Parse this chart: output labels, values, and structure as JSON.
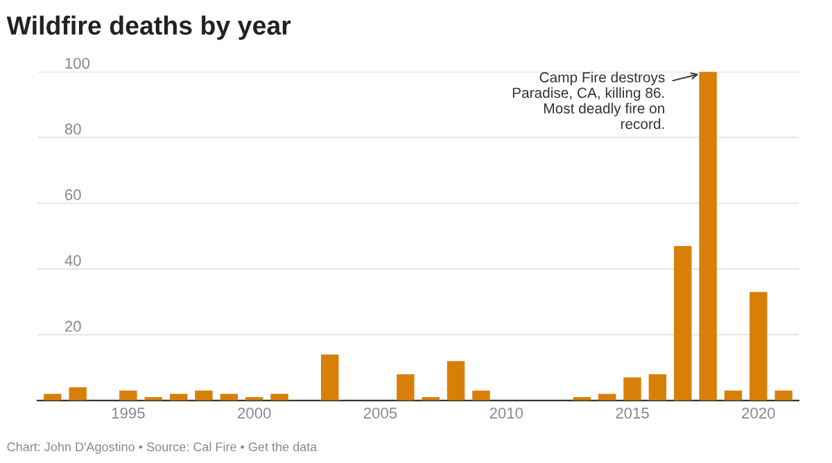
{
  "chart_data": {
    "type": "bar",
    "title": "Wildfire deaths by year",
    "x": [
      1992,
      1993,
      1994,
      1995,
      1996,
      1997,
      1998,
      1999,
      2000,
      2001,
      2002,
      2003,
      2004,
      2005,
      2006,
      2007,
      2008,
      2009,
      2010,
      2011,
      2012,
      2013,
      2014,
      2015,
      2016,
      2017,
      2018,
      2019,
      2020,
      2021
    ],
    "values": [
      2,
      4,
      0,
      3,
      1,
      2,
      3,
      2,
      1,
      2,
      0,
      14,
      0,
      0,
      8,
      1,
      12,
      3,
      0,
      0,
      0,
      1,
      2,
      7,
      8,
      47,
      100,
      3,
      33,
      3
    ],
    "color": "#d87f0a",
    "xlim": [
      1991.4,
      2021.6
    ],
    "xticks": [
      1995,
      2000,
      2005,
      2010,
      2015,
      2020
    ],
    "ylim": [
      0,
      100
    ],
    "yticks": [
      20,
      40,
      60,
      80,
      100
    ],
    "grid": "y",
    "annotations": [
      {
        "text": "Camp Fire destroys\nParadise, CA, killing 86.\nMost deadly fire on\nrecord.",
        "x": 2018,
        "y": 100
      },
      "Chart: John D'Agostino • Source: Cal Fire • Get the data"
    ]
  }
}
